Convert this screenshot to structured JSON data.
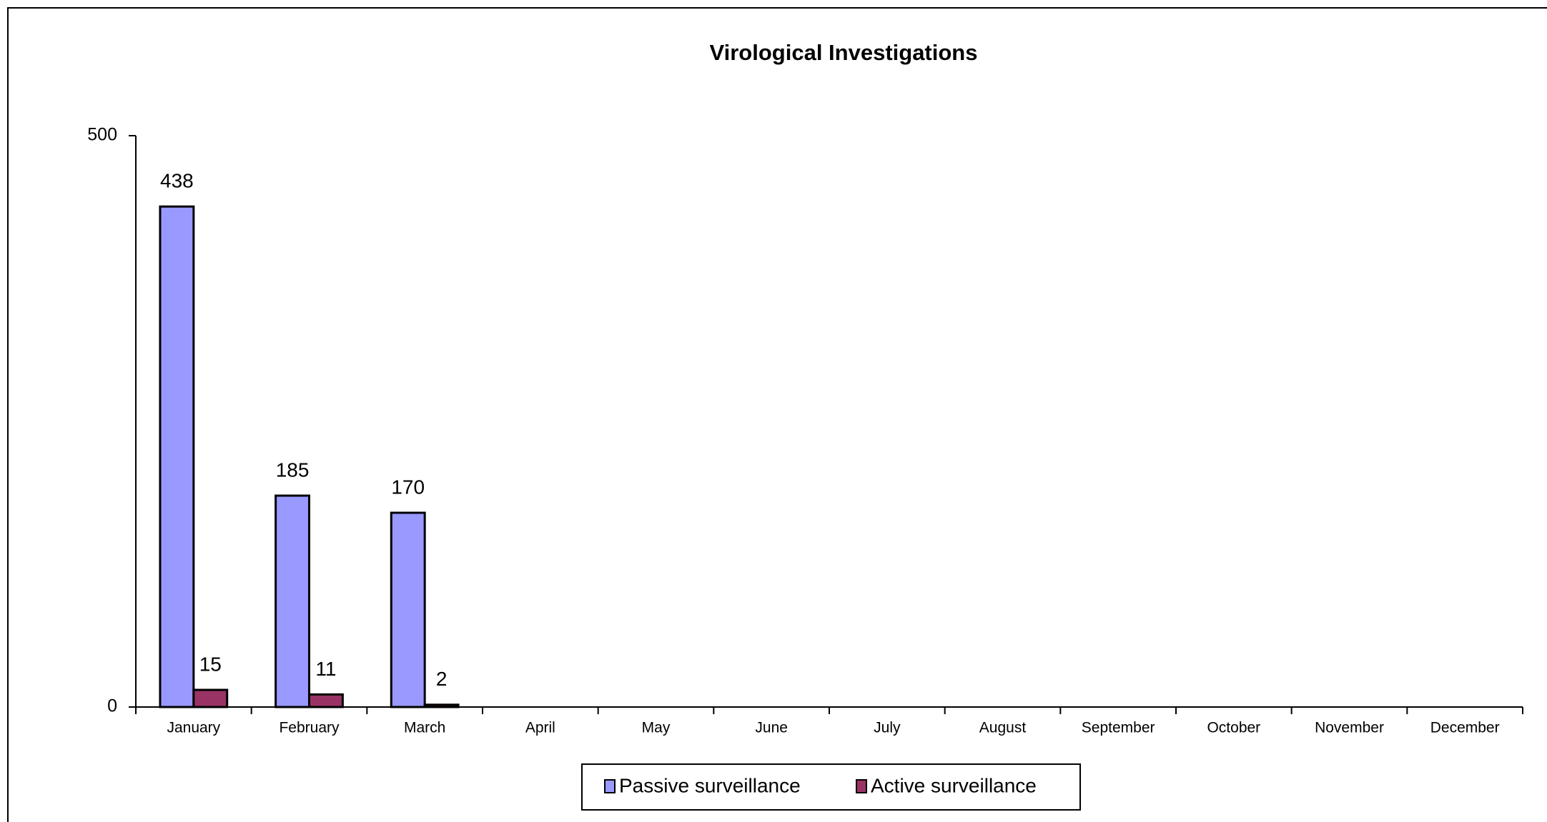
{
  "chart_data": {
    "type": "bar",
    "title": "Virological Investigations",
    "categories": [
      "January",
      "February",
      "March",
      "April",
      "May",
      "June",
      "July",
      "August",
      "September",
      "October",
      "November",
      "December"
    ],
    "series": [
      {
        "name": "Passive surveillance",
        "color": "#9999ff",
        "values": [
          438,
          185,
          170,
          null,
          null,
          null,
          null,
          null,
          null,
          null,
          null,
          null
        ]
      },
      {
        "name": "Active surveillance",
        "color": "#993366",
        "values": [
          15,
          11,
          2,
          null,
          null,
          null,
          null,
          null,
          null,
          null,
          null,
          null
        ]
      }
    ],
    "ylim": [
      0,
      500
    ],
    "yticks": [
      0,
      500
    ],
    "grid": false,
    "legend": "bottom"
  }
}
